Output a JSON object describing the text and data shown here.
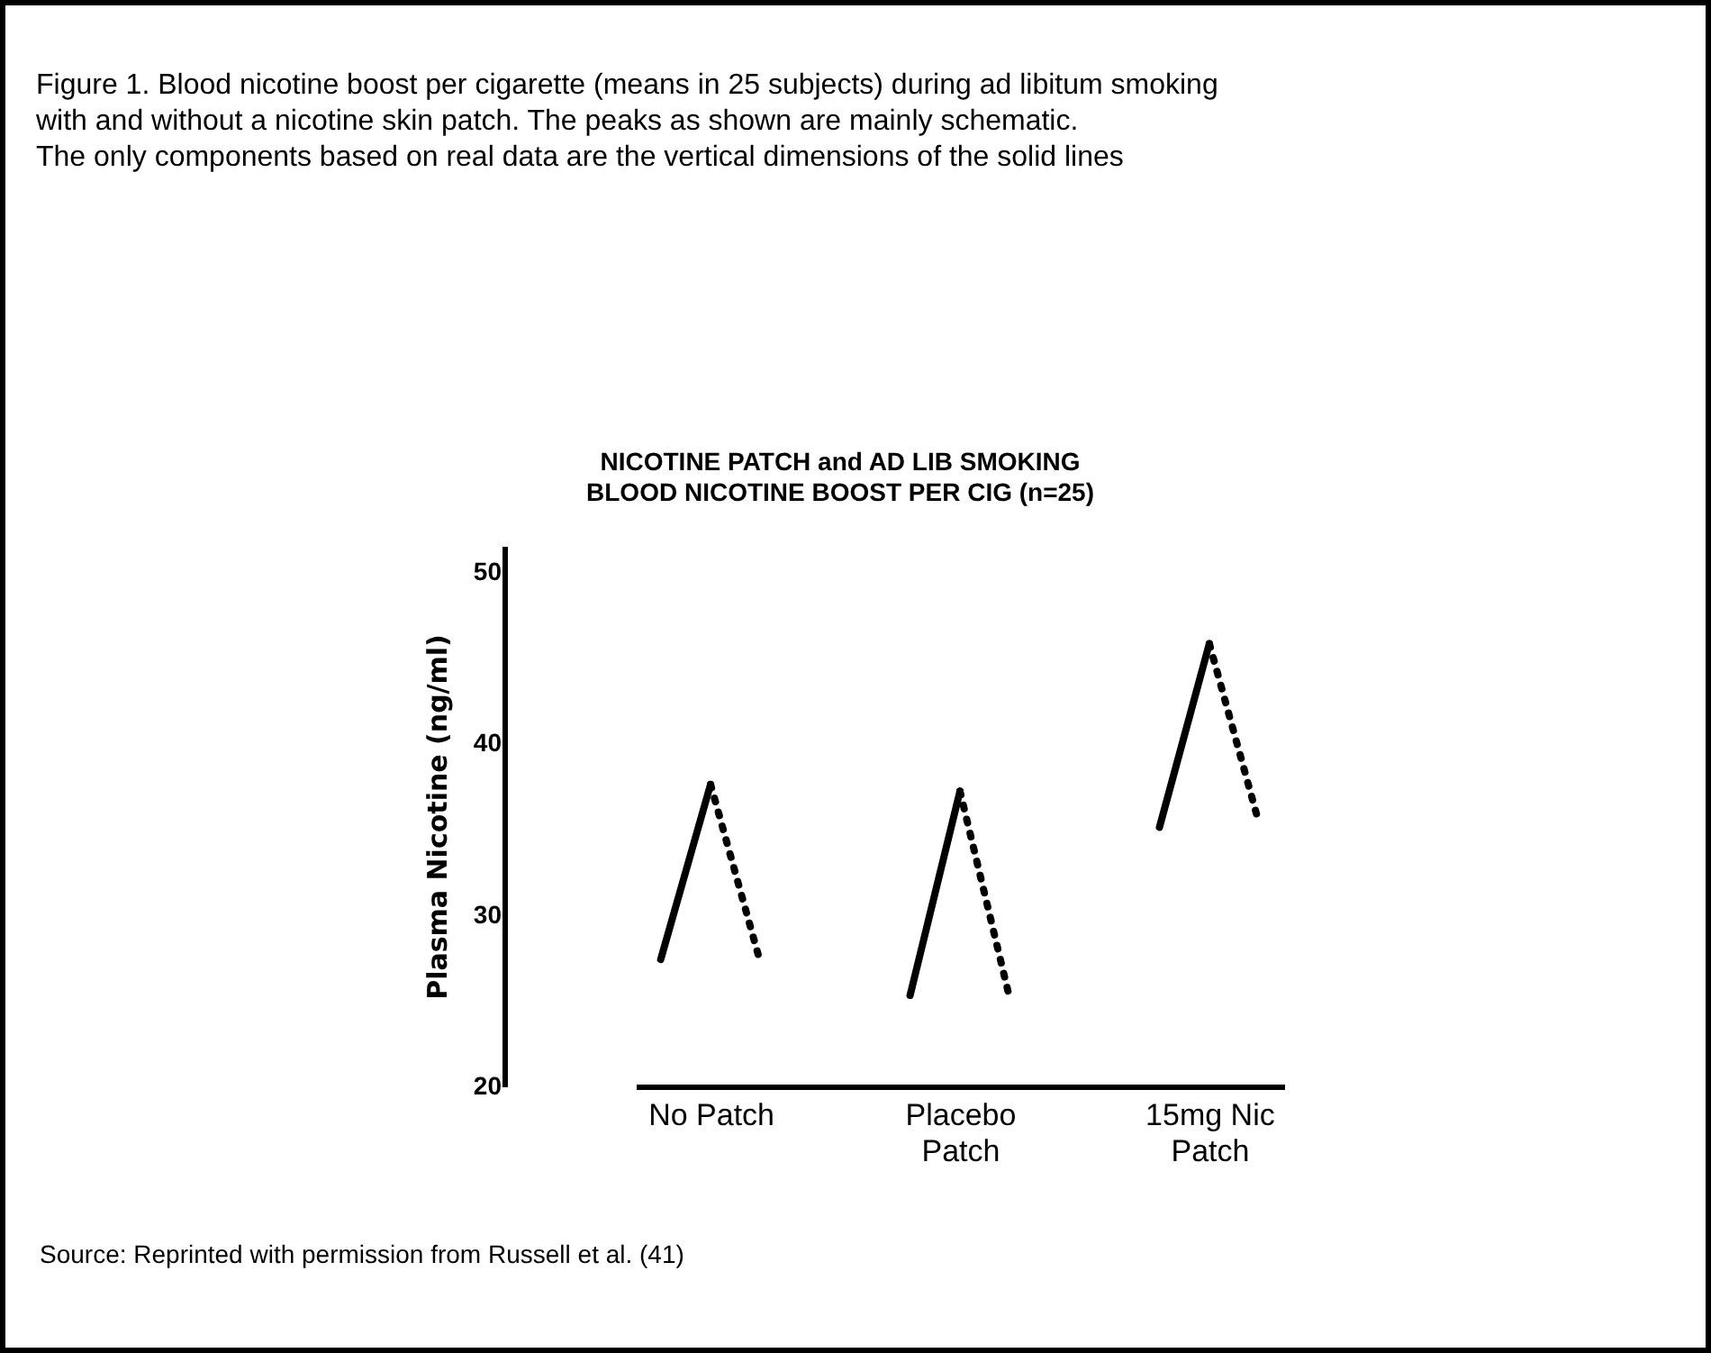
{
  "chart_data": {
    "type": "line",
    "title": "NICOTINE PATCH and AD LIB SMOKING\nBLOOD NICOTINE BOOST PER CIG  (n=25)",
    "ylabel": "Plasma Nicotine (ng/ml)",
    "categories": [
      null,
      "No Patch",
      null,
      null,
      null,
      null,
      "Placebo\nPatch",
      null,
      null,
      null,
      null,
      "15mg Nic\nPatch",
      null
    ],
    "ylim": [
      20,
      51.5
    ],
    "yticks": [
      20,
      30,
      40,
      50
    ],
    "grid": false,
    "marker": "none",
    "series": [
      {
        "color": "#000000",
        "line_style": "solid",
        "values": [
          27.4,
          37.6,
          null,
          null,
          null,
          null,
          null,
          null,
          null,
          null,
          null,
          null,
          null
        ]
      },
      {
        "color": "#000000",
        "line_style": "dotted",
        "values": [
          null,
          37.6,
          27.2,
          null,
          null,
          null,
          null,
          null,
          null,
          null,
          null,
          null,
          null
        ]
      },
      {
        "color": "#000000",
        "line_style": "solid",
        "values": [
          null,
          null,
          null,
          null,
          null,
          25.3,
          37.2,
          null,
          null,
          null,
          null,
          null,
          null
        ]
      },
      {
        "color": "#000000",
        "line_style": "dotted",
        "values": [
          null,
          null,
          null,
          null,
          null,
          null,
          37.2,
          25.1,
          null,
          null,
          null,
          null,
          null
        ]
      },
      {
        "color": "#000000",
        "line_style": "solid",
        "values": [
          null,
          null,
          null,
          null,
          null,
          null,
          null,
          null,
          null,
          null,
          35.1,
          45.8,
          null
        ]
      },
      {
        "color": "#000000",
        "line_style": "dotted",
        "values": [
          null,
          null,
          null,
          null,
          null,
          null,
          null,
          null,
          null,
          null,
          null,
          45.8,
          35.3
        ]
      }
    ],
    "annotations": [
      "Figure 1.  Blood nicotine boost per cigarette (means in 25 subjects) during ad libitum smoking\nwith and without a nicotine skin patch. The peaks as shown are mainly schematic.\nThe only components based on real data are the vertical dimensions of the solid lines",
      "Source: Reprinted with permission from Russell et al. (41)"
    ]
  }
}
